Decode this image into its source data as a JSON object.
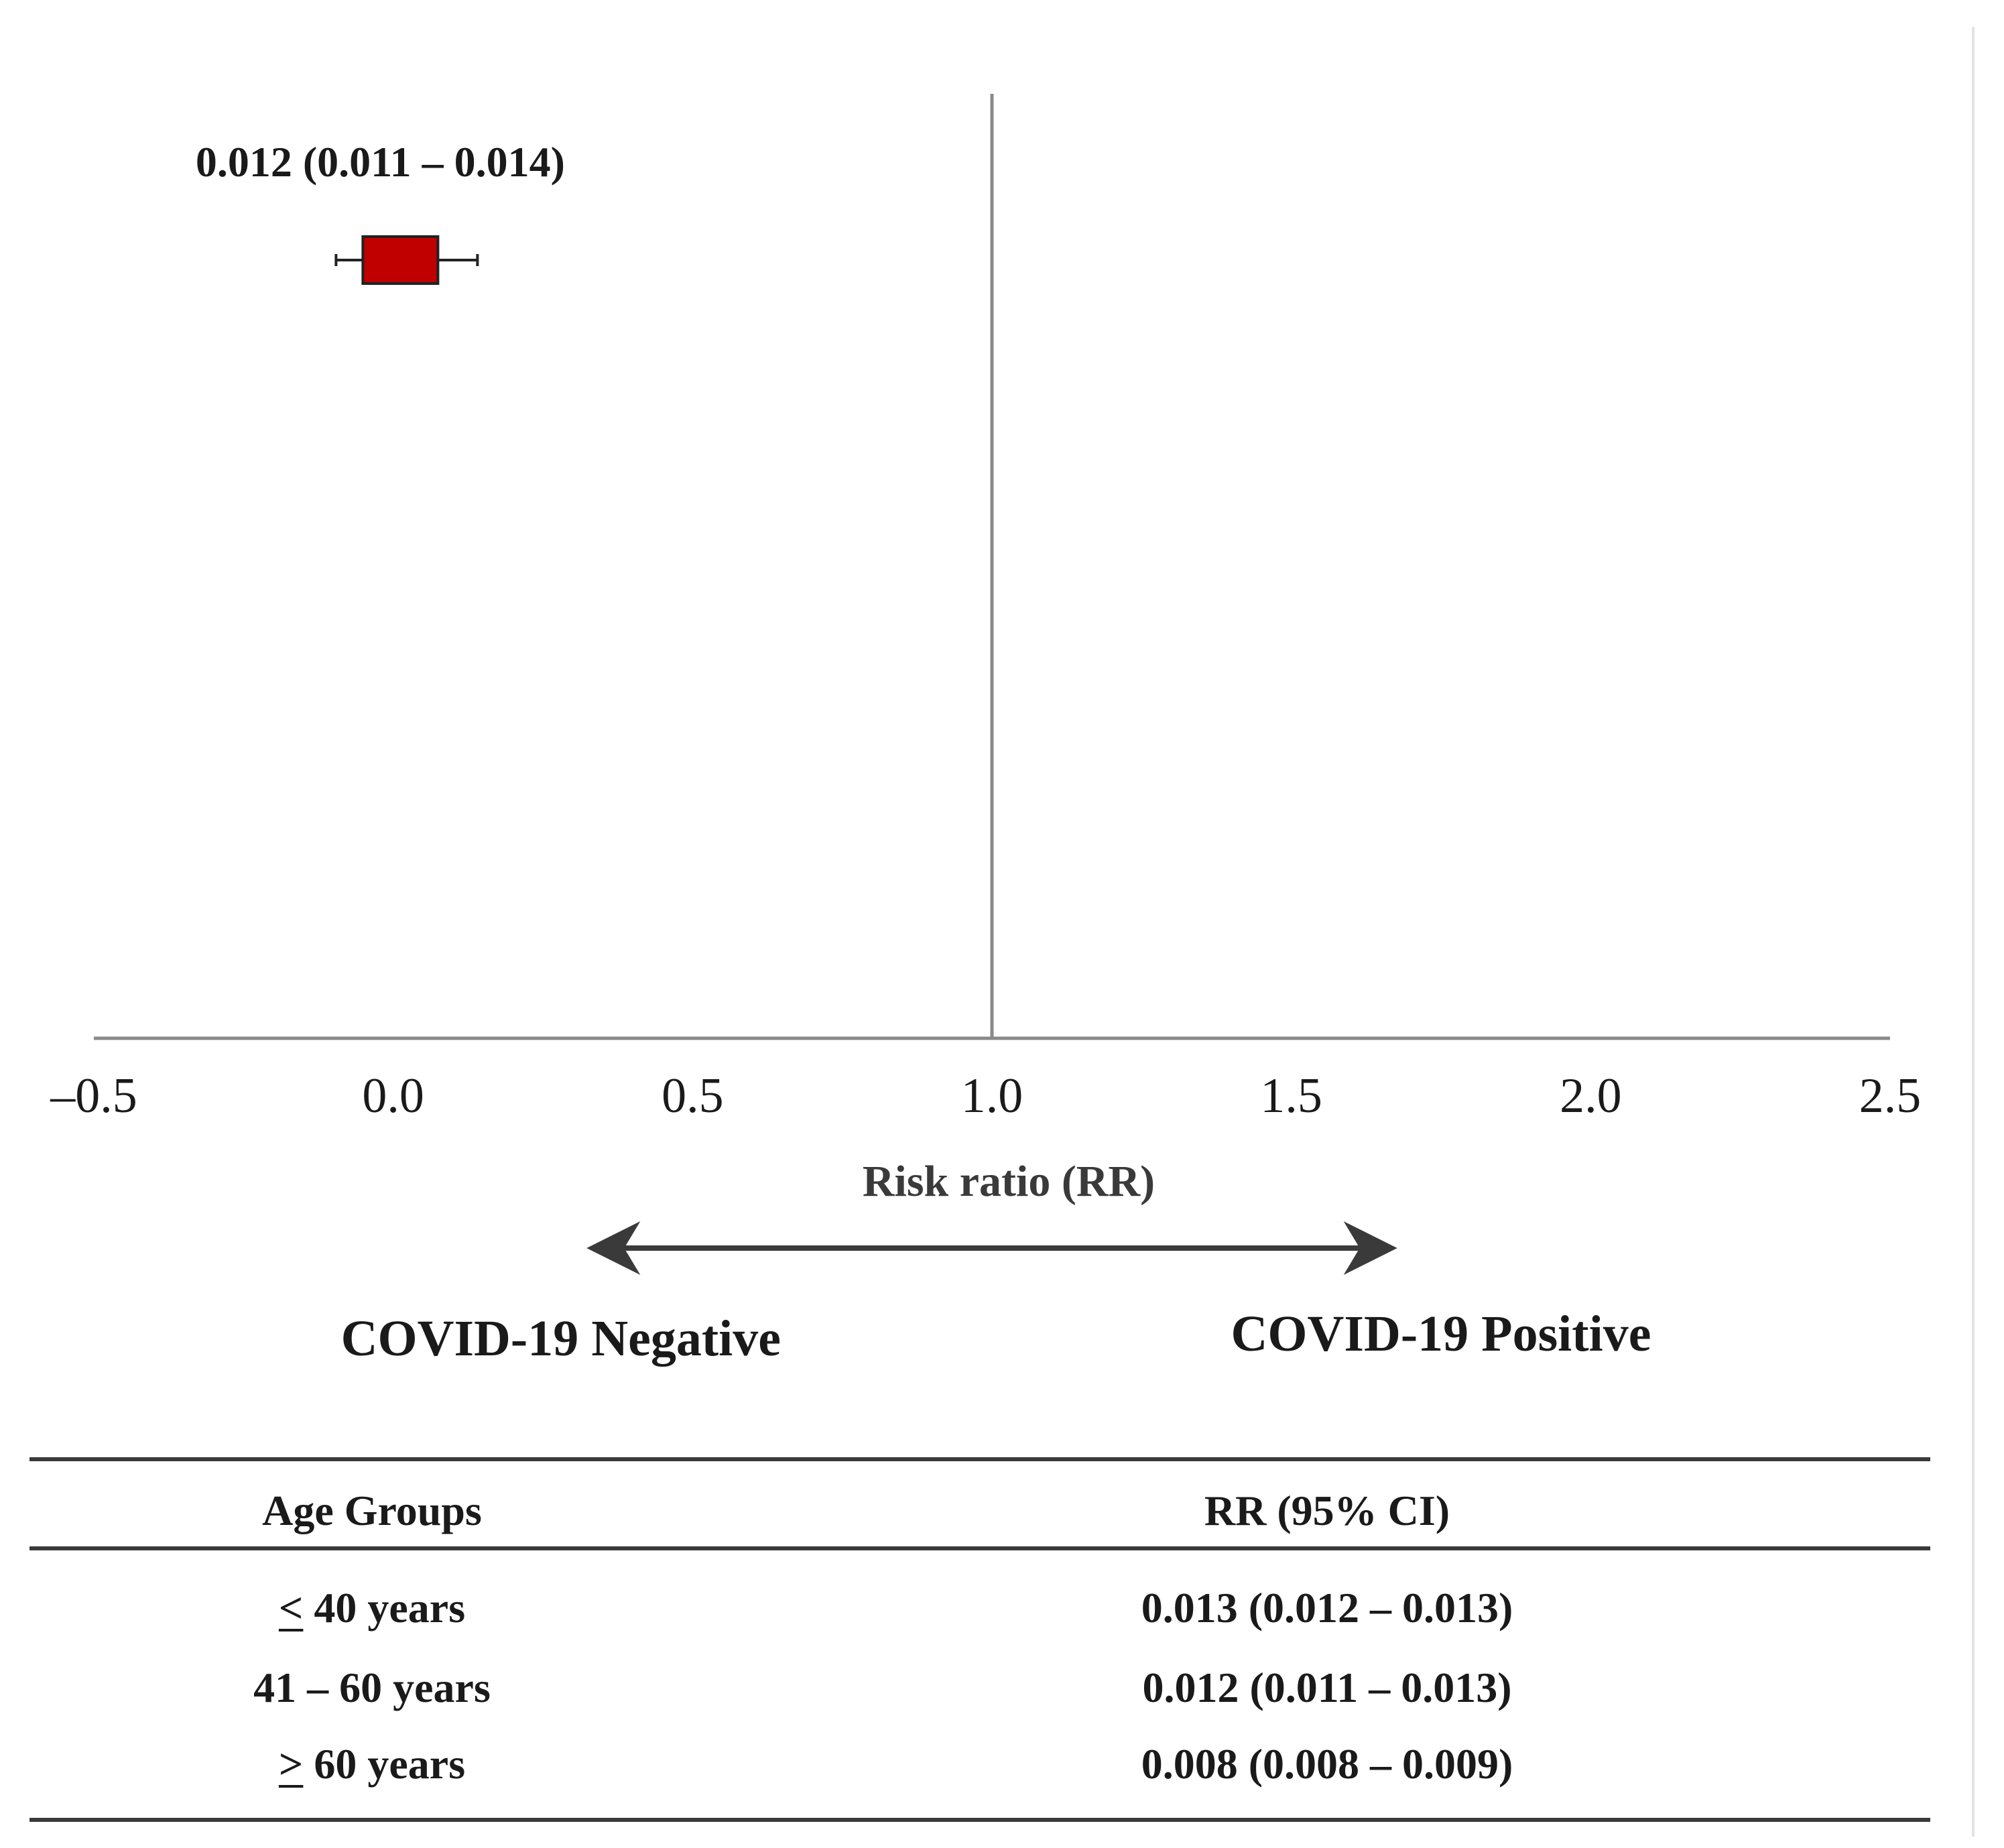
{
  "chart_data": {
    "type": "forest",
    "point": {
      "estimate": 0.012,
      "ci_low": 0.011,
      "ci_high": 0.014,
      "label": "0.012 (0.011 – 0.014)",
      "color": "#c00000"
    },
    "reference_line": 1.0,
    "xlim": [
      -0.5,
      2.5
    ],
    "x_ticks": [
      {
        "value": -0.5,
        "label": "–0.5"
      },
      {
        "value": 0.0,
        "label": "0.0"
      },
      {
        "value": 0.5,
        "label": "0.5"
      },
      {
        "value": 1.0,
        "label": "1.0"
      },
      {
        "value": 1.5,
        "label": "1.5"
      },
      {
        "value": 2.0,
        "label": "2.0"
      },
      {
        "value": 2.5,
        "label": "2.5"
      }
    ],
    "xlabel": "Risk ratio (RR)",
    "direction_left": "COVID-19 Negative",
    "direction_right": "COVID-19 Positive"
  },
  "table": {
    "headers": [
      "Age Groups",
      "RR (95% CI)"
    ],
    "rows": [
      {
        "sym": "<",
        "age_rest": " 40 years",
        "rr": "0.013 (0.012 – 0.013)"
      },
      {
        "sym": "",
        "age_rest": "41 – 60 years",
        "rr": "0.012 (0.011 – 0.013)"
      },
      {
        "sym": ">",
        "age_rest": " 60 years",
        "rr": "0.008 (0.008 – 0.009)"
      }
    ]
  }
}
